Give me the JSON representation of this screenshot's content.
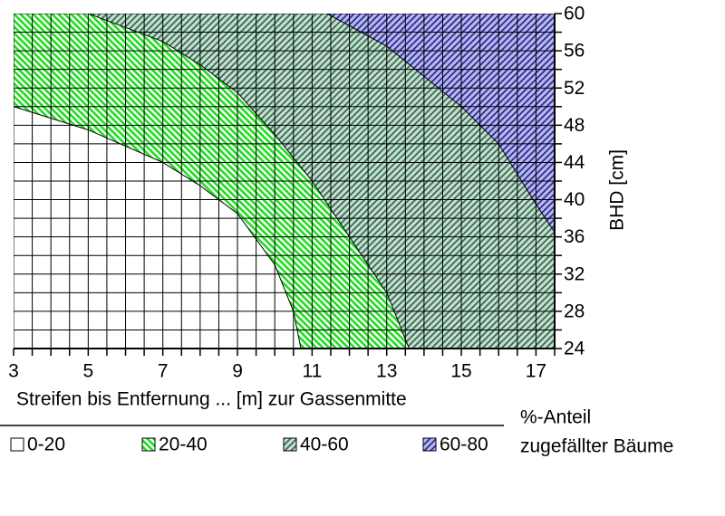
{
  "chart_data": {
    "type": "contour",
    "x_label": "Streifen bis Entfernung ... [m] zur Gassenmitte",
    "y_label": "BHD [cm]",
    "xlim": [
      3,
      17.5
    ],
    "ylim": [
      24,
      60
    ],
    "xticks": [
      3,
      5,
      7,
      9,
      11,
      13,
      15,
      17
    ],
    "yticks": [
      24,
      28,
      32,
      36,
      40,
      44,
      48,
      52,
      56,
      60
    ],
    "xminor": [
      3,
      3.5,
      4,
      4.5,
      5,
      5.5,
      6,
      6.5,
      7,
      7.5,
      8,
      8.5,
      9,
      9.5,
      10,
      10.5,
      11,
      11.5,
      12,
      12.5,
      13,
      13.5,
      14,
      14.5,
      15,
      15.5,
      16,
      16.5,
      17,
      17.5
    ],
    "yminor": [
      24,
      26,
      28,
      30,
      32,
      34,
      36,
      38,
      40,
      42,
      44,
      46,
      48,
      50,
      52,
      54,
      56,
      58,
      60
    ],
    "grid": true,
    "legend_title": [
      "%-Anteil",
      "zugefällter Bäume"
    ],
    "series": [
      {
        "name": "0-20",
        "color": "#ffffff"
      },
      {
        "name": "20-40",
        "color": "#22dd22"
      },
      {
        "name": "40-60",
        "color": "#2f6e50"
      },
      {
        "name": "60-80",
        "color": "#2a2a99"
      }
    ],
    "boundaries": [
      {
        "x": [
          3,
          5,
          7,
          8,
          9,
          10,
          10.5,
          10.7
        ],
        "y": [
          50,
          47.5,
          44,
          41.5,
          38.5,
          33,
          28,
          24
        ]
      },
      {
        "x": [
          5,
          7,
          8,
          9,
          10,
          11,
          12,
          13,
          13.6
        ],
        "y": [
          60,
          57,
          54.5,
          51.5,
          47,
          42,
          36,
          30,
          24
        ]
      },
      {
        "x": [
          11.4,
          13,
          15,
          16,
          17,
          17.5
        ],
        "y": [
          60,
          56.5,
          50,
          46,
          39.5,
          36.5
        ]
      }
    ]
  }
}
